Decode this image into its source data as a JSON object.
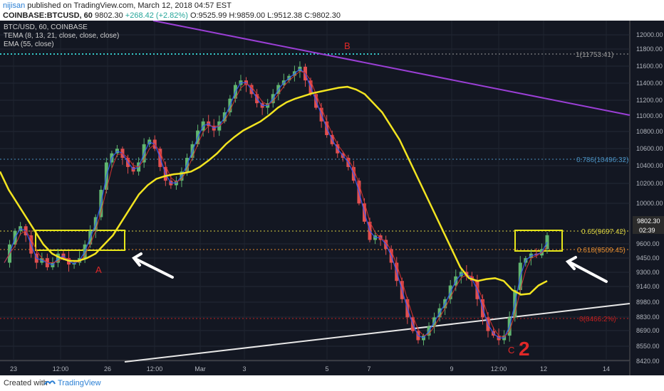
{
  "header": {
    "author": "nijisan",
    "published": "published on TradingView.com, March 12, 2018 04:57 EST",
    "symbol_line": "COINBASE:BTCUSD, 60",
    "last": "9802.30",
    "change": "+268.42 (+2.82%)",
    "ohlc": "O:9525.99 H:9859.00 L:9512.38 C:9802.30"
  },
  "legend": {
    "series": "BTC/USD, 60, COINBASE",
    "tema": "TEMA (8, 13, 21, close, close, close)",
    "ema": "EMA (55, close)"
  },
  "footer": {
    "created": "Created with",
    "brand": "TradingView"
  },
  "chart_data": {
    "type": "candlestick",
    "x_tick_labels": [
      "23",
      "12:00",
      "26",
      "12:00",
      "Mar",
      "3",
      "5",
      "7",
      "9",
      "12:00",
      "12",
      "14"
    ],
    "y_tick_labels": [
      "12000.00",
      "11800.00",
      "11600.00",
      "11400.00",
      "11200.00",
      "11000.00",
      "10800.00",
      "10600.00",
      "10400.00",
      "10200.00",
      "10000.00",
      "9600.00",
      "9450.00",
      "9300.00",
      "9140.00",
      "8980.00",
      "8830.00",
      "8690.00",
      "8550.00",
      "8420.00"
    ],
    "last_price_label": "9802.30",
    "countdown_label": "02:39",
    "fib_levels": [
      {
        "label": "1(11753.41)",
        "value": 11753.41,
        "color": "#999999"
      },
      {
        "label": "0.786(10496.32)",
        "value": 10496.32,
        "color": "#4a90c0"
      },
      {
        "label": "0.65(9697.42)",
        "value": 9697.42,
        "color": "#d8d040"
      },
      {
        "label": "0.618(9509.45)",
        "value": 9509.45,
        "color": "#e08a30"
      },
      {
        "label": "0(8466.2%)",
        "value": 8466,
        "color": "#c02020"
      }
    ],
    "annotations": [
      "A",
      "B",
      "C",
      "2"
    ],
    "close_path": [
      9500,
      9700,
      9850,
      9900,
      9800,
      9600,
      9500,
      9550,
      9450,
      9500,
      9600,
      9550,
      9480,
      9500,
      9550,
      9700,
      9850,
      10000,
      10300,
      10600,
      10700,
      10750,
      10650,
      10550,
      10500,
      10600,
      10800,
      10850,
      10750,
      10550,
      10400,
      10350,
      10400,
      10500,
      10650,
      10800,
      10950,
      11050,
      11000,
      10950,
      11050,
      11150,
      11300,
      11450,
      11500,
      11450,
      11350,
      11250,
      11200,
      11250,
      11350,
      11450,
      11500,
      11550,
      11600,
      11650,
      11500,
      11350,
      11200,
      11050,
      10900,
      10800,
      10700,
      10650,
      10550,
      10400,
      10150,
      9950,
      9750,
      9800,
      9750,
      9650,
      9500,
      9300,
      9100,
      8900,
      8750,
      8650,
      8700,
      8800,
      8900,
      9000,
      9100,
      9250,
      9350,
      9400,
      9350,
      9300,
      9100,
      8900,
      8750,
      8700,
      8650,
      8700,
      8900,
      9200,
      9500,
      9550,
      9600,
      9580,
      9650,
      9802
    ],
    "ema55_path": [
      10500,
      10300,
      10150,
      10000,
      9850,
      9700,
      9600,
      9550,
      9520,
      9520,
      9550,
      9600,
      9700,
      9800,
      9950,
      10100,
      10250,
      10350,
      10420,
      10450,
      10470,
      10480,
      10500,
      10550,
      10620,
      10700,
      10800,
      10880,
      10950,
      11000,
      11050,
      11120,
      11200,
      11260,
      11300,
      11330,
      11360,
      11380,
      11400,
      11420,
      11430,
      11400,
      11350,
      11250,
      11150,
      11000,
      10850,
      10650,
      10450,
      10250,
      10050,
      9850,
      9650,
      9450,
      9330,
      9300,
      9320,
      9330,
      9300,
      9200,
      9150,
      9160,
      9250,
      9300
    ]
  }
}
